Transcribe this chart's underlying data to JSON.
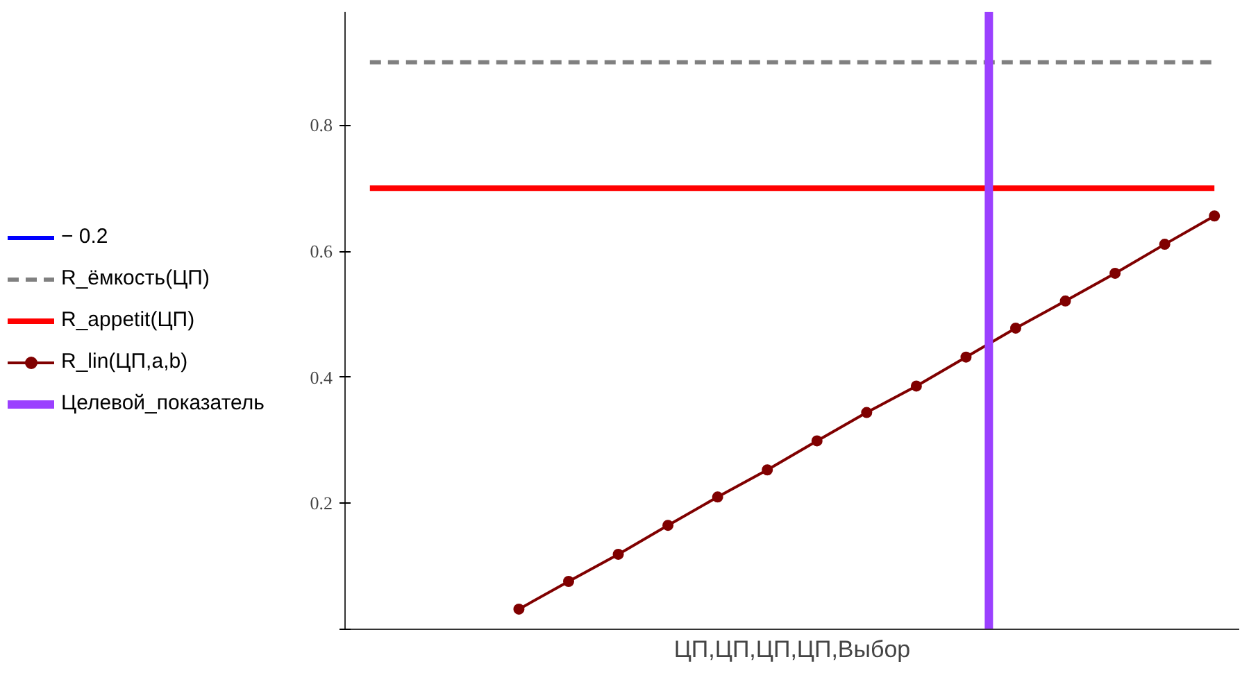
{
  "chart_data": {
    "type": "line",
    "xlabel": "ЦП,ЦП,ЦП,ЦП,Выбор",
    "categories": [
      null,
      null,
      null,
      null,
      null,
      null,
      null,
      null,
      null,
      null,
      null,
      null,
      null,
      null,
      null,
      null,
      null,
      null
    ],
    "ylim": [
      0,
      0.98
    ],
    "yticks": [
      {
        "value": 0,
        "label": null
      },
      0.2,
      0.4,
      0.6,
      0.8
    ],
    "grid": false,
    "legend": "left",
    "series": [
      {
        "name": "− 0.2",
        "color": "#0000ff",
        "values": [
          null,
          null,
          null,
          null,
          null,
          null,
          null,
          null,
          null,
          null,
          null,
          null,
          null,
          null,
          null,
          null,
          null,
          null
        ]
      },
      {
        "name": "R_ёмкость(ЦП)",
        "color": "#808080",
        "line_style": "dashed",
        "values": [
          0.9,
          0.9,
          0.9,
          0.9,
          0.9,
          0.9,
          0.9,
          0.9,
          0.9,
          0.9,
          0.9,
          0.9,
          0.9,
          0.9,
          0.9,
          0.9,
          0.9,
          0.9
        ]
      },
      {
        "name": "R_appetit(ЦП)",
        "color": "#ff0000",
        "values": [
          0.7,
          0.7,
          0.7,
          0.7,
          0.7,
          0.7,
          0.7,
          0.7,
          0.7,
          0.7,
          0.7,
          0.7,
          0.7,
          0.7,
          0.7,
          0.7,
          0.7,
          0.7
        ]
      },
      {
        "name": "R_lin(ЦП,a,b)",
        "color": "#800000",
        "marker": "circle",
        "values": [
          null,
          null,
          null,
          0.032,
          0.076,
          0.119,
          0.165,
          0.21,
          0.253,
          0.299,
          0.344,
          0.386,
          0.432,
          0.478,
          0.521,
          0.565,
          0.611,
          0.656
        ]
      }
    ],
    "ref_lines": [
      {
        "axis": "x",
        "label": "Целевой_показатель",
        "color": "#9b40ff"
      }
    ]
  }
}
